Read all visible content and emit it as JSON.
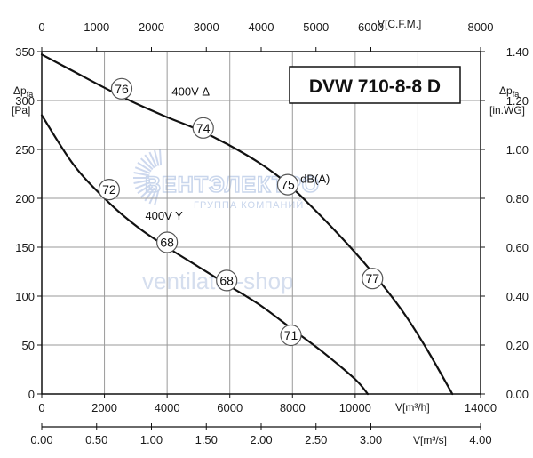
{
  "chart_data": {
    "type": "line",
    "title": "DVW 710-8-8 D",
    "xlabel": "V[m³/h]",
    "ylabel_left": "Δp",
    "ylabel_left_sub": "fa",
    "ylabel_left_unit": "[Pa]",
    "ylabel_right": "Δp",
    "ylabel_right_sub": "fa",
    "ylabel_right_unit": "[in.WG]",
    "xlim": [
      0,
      14000
    ],
    "ylim": [
      0,
      350
    ],
    "grid": true,
    "axes": {
      "bottom_m3h": {
        "label": "V[m³/h]",
        "range": [
          0,
          14000
        ],
        "ticks": [
          "0",
          "2000",
          "4000",
          "6000",
          "8000",
          "10000",
          "14000"
        ]
      },
      "bottom_m3s": {
        "label": "V[m³/s]",
        "range": [
          0,
          4.0
        ],
        "ticks": [
          "0.00",
          "0.50",
          "1.00",
          "1.50",
          "2.00",
          "2.50",
          "3.00",
          "4.00"
        ]
      },
      "top_cfm": {
        "label": "V[C.F.M.]",
        "range": [
          0,
          8000
        ],
        "ticks": [
          "0",
          "1000",
          "2000",
          "3000",
          "4000",
          "5000",
          "6000",
          "8000"
        ]
      },
      "left_pa": {
        "label": "[Pa]",
        "range": [
          0,
          350
        ],
        "ticks": [
          "0",
          "50",
          "100",
          "150",
          "200",
          "250",
          "300",
          "350"
        ]
      },
      "right_inwg": {
        "label": "[in.WG]",
        "range": [
          0,
          1.4
        ],
        "ticks": [
          "0.00",
          "0.20",
          "0.40",
          "0.60",
          "0.80",
          "1.00",
          "1.20",
          "1.40"
        ]
      }
    },
    "series": [
      {
        "name": "400V Δ",
        "x": [
          0,
          1000,
          2000,
          3000,
          4000,
          5000,
          6000,
          7000,
          7800,
          8500,
          9500,
          10500,
          11500,
          12300,
          13100
        ],
        "y": [
          347,
          330,
          313,
          297,
          283,
          270,
          254,
          235,
          216,
          195,
          162,
          126,
          85,
          45,
          0
        ]
      },
      {
        "name": "400V Y",
        "x": [
          0,
          1000,
          2000,
          3000,
          4000,
          5000,
          6000,
          7000,
          8000,
          9000,
          10000,
          10400
        ],
        "y": [
          285,
          235,
          200,
          172,
          150,
          130,
          110,
          90,
          66,
          42,
          15,
          0
        ]
      }
    ],
    "curve_labels": [
      {
        "text": "400V Δ",
        "x": 4150,
        "y": 305
      },
      {
        "text": "400V Y",
        "x": 3300,
        "y": 178
      }
    ],
    "sound_levels": [
      {
        "label": "76",
        "x": 2550,
        "y": 312
      },
      {
        "label": "74",
        "x": 5150,
        "y": 272
      },
      {
        "label": "75",
        "x": 7850,
        "y": 214
      },
      {
        "label": "77",
        "x": 10550,
        "y": 118
      },
      {
        "label": "72",
        "x": 2150,
        "y": 209
      },
      {
        "label": "68",
        "x": 4000,
        "y": 155
      },
      {
        "label": "68",
        "x": 5900,
        "y": 116
      },
      {
        "label": "71",
        "x": 7950,
        "y": 60
      }
    ],
    "sound_unit": {
      "text": "dB(A)",
      "x": 8250,
      "y": 216
    }
  },
  "watermark": {
    "brand": "ВЕНТЭЛЕКТРО",
    "subtitle": "ГРУППА КОМПАНИЙ",
    "site": "ventilator-shop"
  }
}
